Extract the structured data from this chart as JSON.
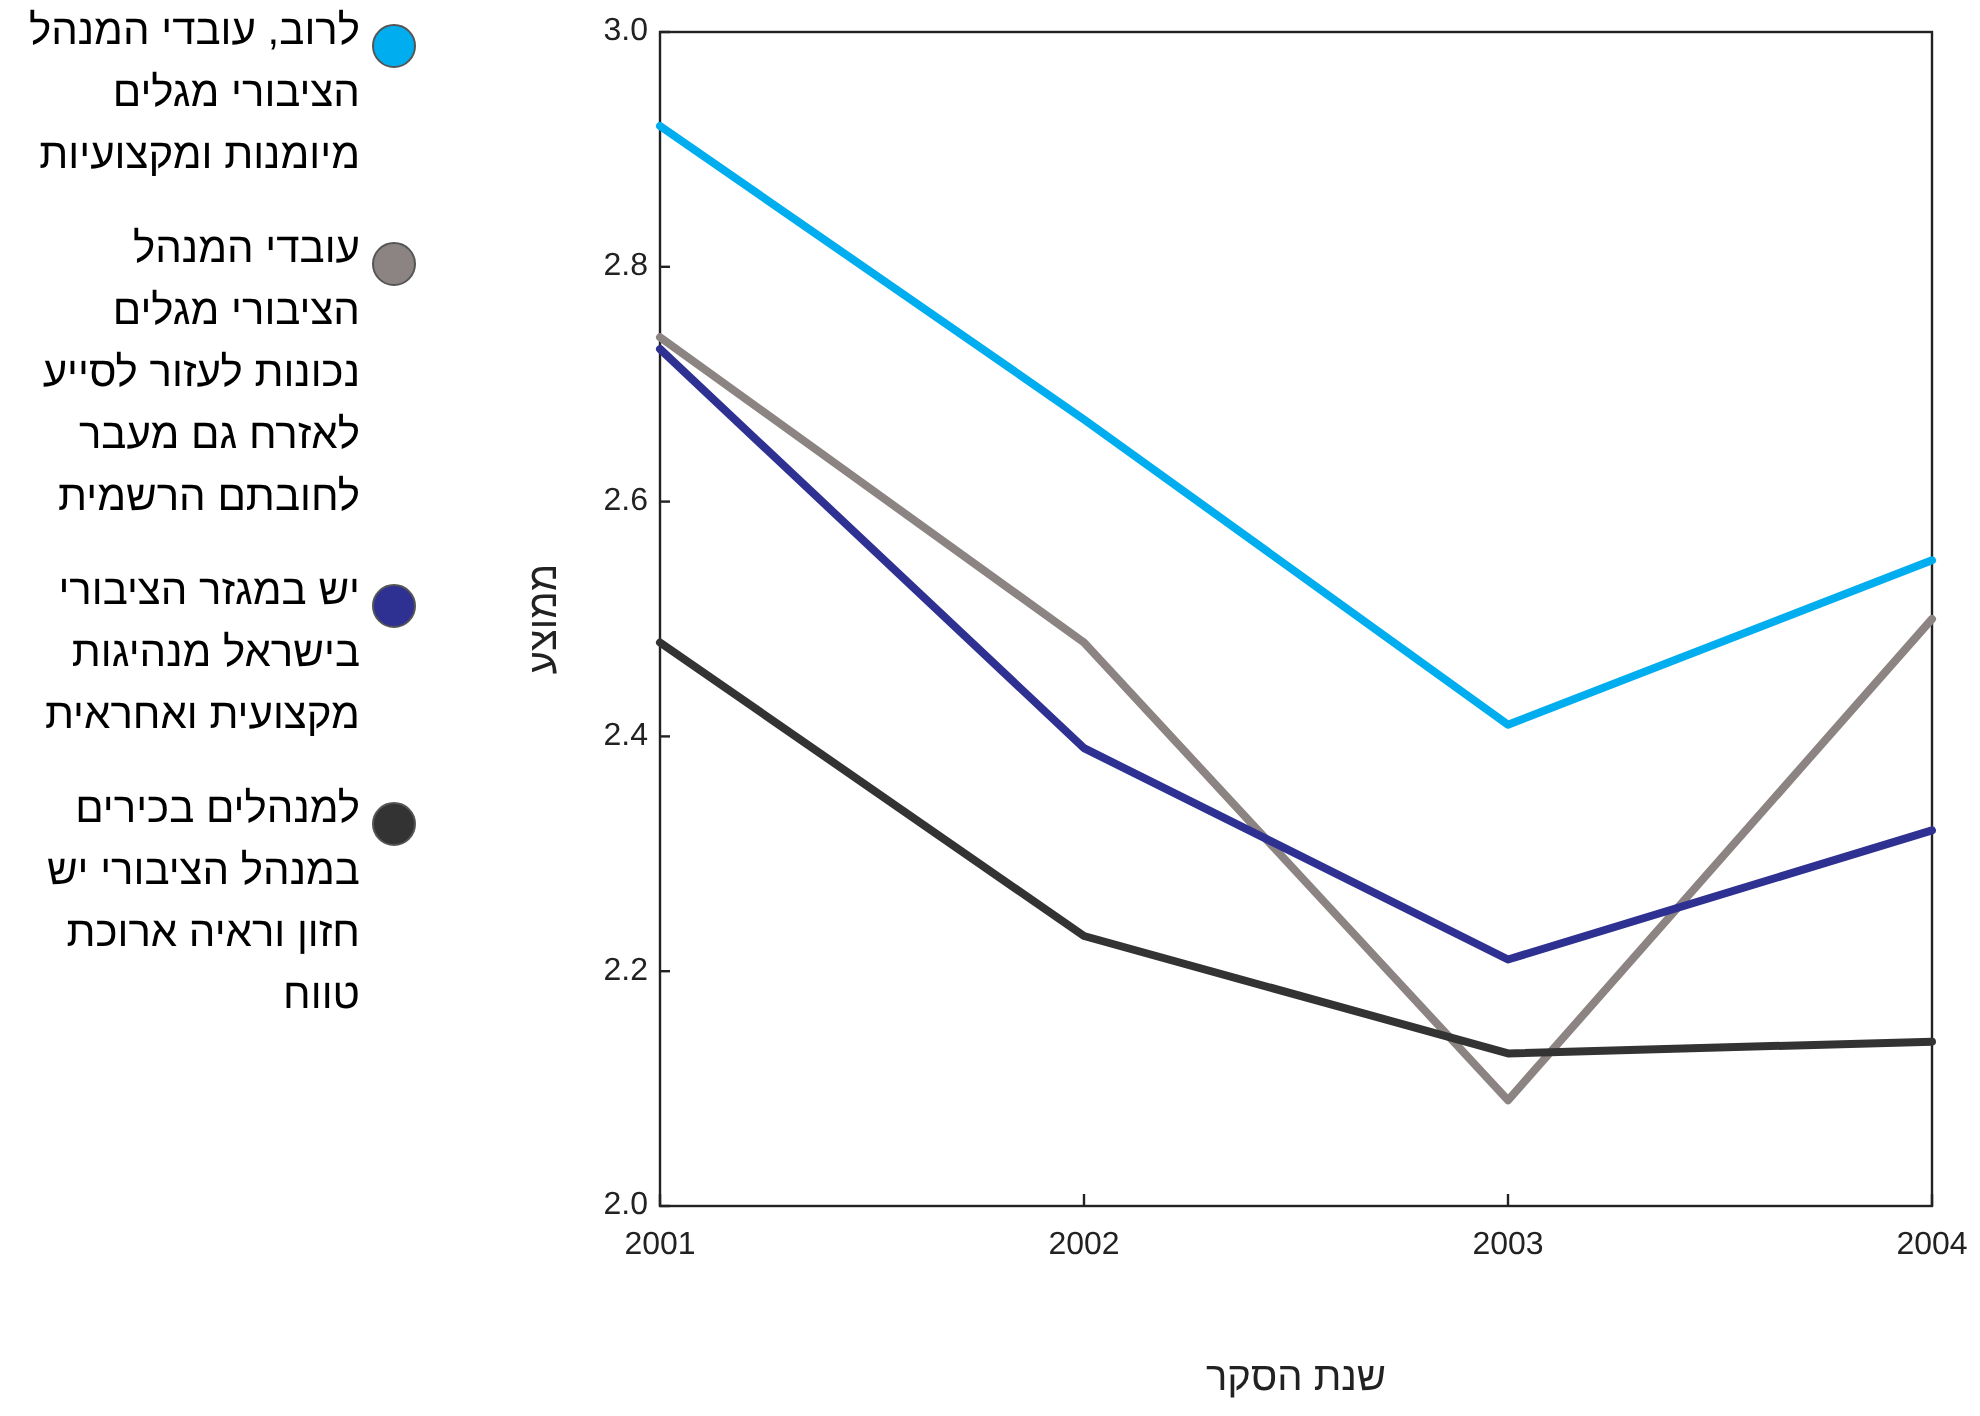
{
  "chart_data": {
    "type": "line",
    "xlabel": "שנת הסקר",
    "ylabel": "ממוצע",
    "x": [
      2001,
      2002,
      2003,
      2004
    ],
    "xlim": [
      2001,
      2004
    ],
    "xticks": [
      2001,
      2002,
      2003,
      2004
    ],
    "ylim": [
      2.0,
      3.0
    ],
    "yticks": [
      {
        "value": 2.0,
        "label": "2.0"
      },
      2.2,
      2.4,
      2.6,
      2.8,
      {
        "value": 3.0,
        "label": "3.0"
      }
    ],
    "grid": false,
    "legend": "left",
    "marker": "none",
    "line_style": "solid",
    "series": [
      {
        "name": "לרוב, עובדי המנהל הציבורי מגלים מיומנות ומקצועיות",
        "color": "#00aeef",
        "values": [
          2.92,
          2.67,
          2.41,
          2.55
        ]
      },
      {
        "name": "עובדי המנהל הציבורי מגלים נכונות לעזור לסייע לאזרח גם מעבר לחובתם הרשמית",
        "color": "#8c8482",
        "values": [
          2.74,
          2.48,
          2.09,
          2.5
        ]
      },
      {
        "name": "יש במגזר הציבורי בישראל מנהיגות מקצועית ואחראית",
        "color": "#2e3192",
        "values": [
          2.73,
          2.39,
          2.21,
          2.32
        ]
      },
      {
        "name": "למנהלים בכירים במנהל הציבורי יש חזון וראיה ארוכת טווח",
        "color": "#333333",
        "values": [
          2.48,
          2.23,
          2.13,
          2.14
        ]
      }
    ]
  }
}
